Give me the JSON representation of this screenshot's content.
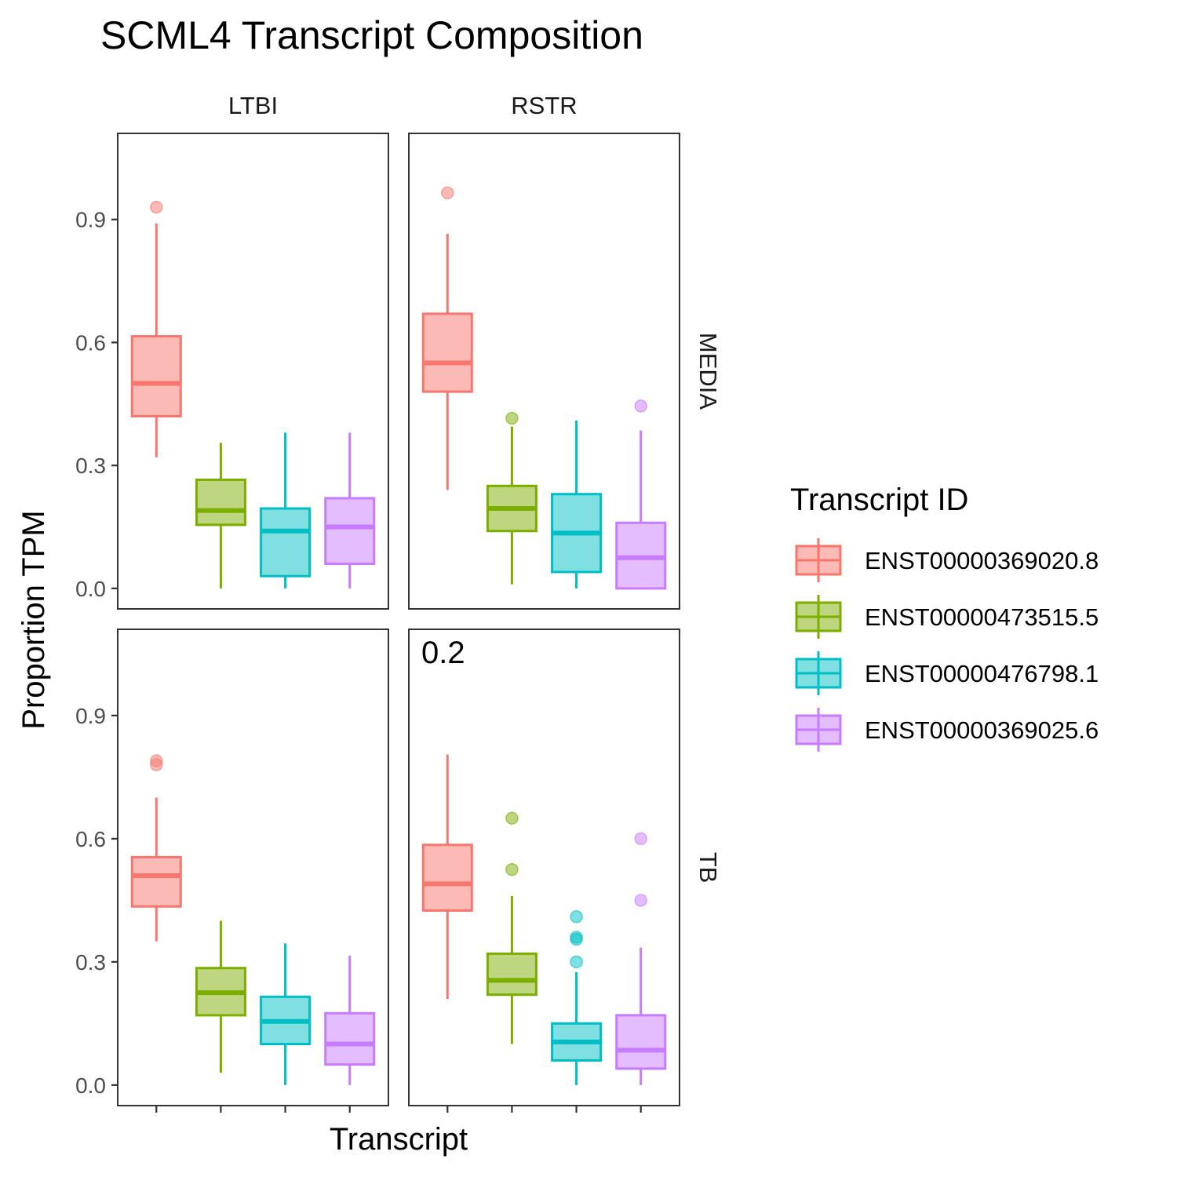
{
  "chart_data": {
    "type": "boxplot",
    "title": "SCML4 Transcript Composition",
    "xlabel": "Transcript",
    "ylabel": "Proportion TPM",
    "ylim": [
      -0.05,
      1.11
    ],
    "yticks": [
      "0.0",
      "0.3",
      "0.6",
      "0.9"
    ],
    "ytick_values": [
      0.0,
      0.3,
      0.6,
      0.9
    ],
    "grid": false,
    "legend": {
      "title": "Transcript ID",
      "position": "right",
      "items": [
        {
          "name": "ENST00000369020.8",
          "color": "#F8766D"
        },
        {
          "name": "ENST00000473515.5",
          "color": "#7CAE00"
        },
        {
          "name": "ENST00000476798.1",
          "color": "#00BFC4"
        },
        {
          "name": "ENST00000369025.6",
          "color": "#C77CFF"
        }
      ]
    },
    "col_facets": [
      "LTBI",
      "RSTR"
    ],
    "row_facets": [
      "MEDIA",
      "TB"
    ],
    "panels": [
      {
        "col": "LTBI",
        "row": "MEDIA",
        "annotation": "",
        "boxes": [
          {
            "transcript": "ENST00000369020.8",
            "lower_whisker": 0.32,
            "q1": 0.42,
            "median": 0.5,
            "q3": 0.615,
            "upper_whisker": 0.89,
            "outliers": [
              0.93
            ]
          },
          {
            "transcript": "ENST00000473515.5",
            "lower_whisker": 0.0,
            "q1": 0.155,
            "median": 0.19,
            "q3": 0.265,
            "upper_whisker": 0.355,
            "outliers": []
          },
          {
            "transcript": "ENST00000476798.1",
            "lower_whisker": 0.0,
            "q1": 0.03,
            "median": 0.14,
            "q3": 0.195,
            "upper_whisker": 0.38,
            "outliers": []
          },
          {
            "transcript": "ENST00000369025.6",
            "lower_whisker": 0.0,
            "q1": 0.06,
            "median": 0.15,
            "q3": 0.22,
            "upper_whisker": 0.38,
            "outliers": []
          }
        ]
      },
      {
        "col": "RSTR",
        "row": "MEDIA",
        "annotation": "",
        "boxes": [
          {
            "transcript": "ENST00000369020.8",
            "lower_whisker": 0.24,
            "q1": 0.48,
            "median": 0.55,
            "q3": 0.67,
            "upper_whisker": 0.865,
            "outliers": [
              0.965
            ]
          },
          {
            "transcript": "ENST00000473515.5",
            "lower_whisker": 0.01,
            "q1": 0.14,
            "median": 0.195,
            "q3": 0.25,
            "upper_whisker": 0.395,
            "outliers": [
              0.415
            ]
          },
          {
            "transcript": "ENST00000476798.1",
            "lower_whisker": 0.0,
            "q1": 0.04,
            "median": 0.135,
            "q3": 0.23,
            "upper_whisker": 0.41,
            "outliers": []
          },
          {
            "transcript": "ENST00000369025.6",
            "lower_whisker": 0.0,
            "q1": 0.0,
            "median": 0.075,
            "q3": 0.16,
            "upper_whisker": 0.385,
            "outliers": [
              0.445
            ]
          }
        ]
      },
      {
        "col": "LTBI",
        "row": "TB",
        "annotation": "",
        "boxes": [
          {
            "transcript": "ENST00000369020.8",
            "lower_whisker": 0.35,
            "q1": 0.435,
            "median": 0.51,
            "q3": 0.555,
            "upper_whisker": 0.7,
            "outliers": [
              0.78,
              0.79
            ]
          },
          {
            "transcript": "ENST00000473515.5",
            "lower_whisker": 0.03,
            "q1": 0.17,
            "median": 0.225,
            "q3": 0.285,
            "upper_whisker": 0.4,
            "outliers": []
          },
          {
            "transcript": "ENST00000476798.1",
            "lower_whisker": 0.0,
            "q1": 0.1,
            "median": 0.155,
            "q3": 0.215,
            "upper_whisker": 0.345,
            "outliers": []
          },
          {
            "transcript": "ENST00000369025.6",
            "lower_whisker": 0.0,
            "q1": 0.05,
            "median": 0.1,
            "q3": 0.175,
            "upper_whisker": 0.315,
            "outliers": []
          }
        ]
      },
      {
        "col": "RSTR",
        "row": "TB",
        "annotation": "0.2",
        "boxes": [
          {
            "transcript": "ENST00000369020.8",
            "lower_whisker": 0.21,
            "q1": 0.425,
            "median": 0.49,
            "q3": 0.585,
            "upper_whisker": 0.805,
            "outliers": []
          },
          {
            "transcript": "ENST00000473515.5",
            "lower_whisker": 0.1,
            "q1": 0.22,
            "median": 0.255,
            "q3": 0.32,
            "upper_whisker": 0.46,
            "outliers": [
              0.525,
              0.65
            ]
          },
          {
            "transcript": "ENST00000476798.1",
            "lower_whisker": 0.0,
            "q1": 0.06,
            "median": 0.105,
            "q3": 0.15,
            "upper_whisker": 0.275,
            "outliers": [
              0.3,
              0.355,
              0.36,
              0.41
            ]
          },
          {
            "transcript": "ENST00000369025.6",
            "lower_whisker": 0.0,
            "q1": 0.04,
            "median": 0.085,
            "q3": 0.17,
            "upper_whisker": 0.335,
            "outliers": [
              0.45,
              0.6
            ]
          }
        ]
      }
    ]
  }
}
